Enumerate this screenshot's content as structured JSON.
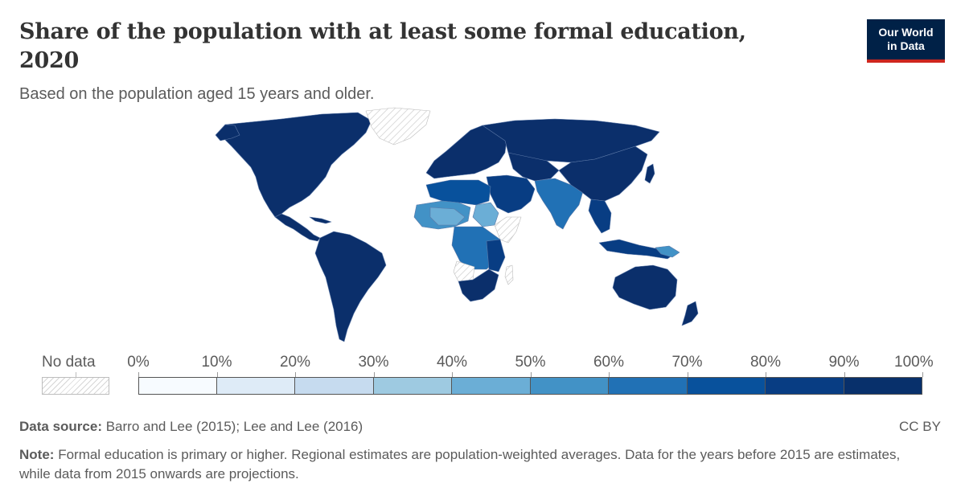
{
  "header": {
    "title": "Share of the population with at least some formal education, 2020",
    "subtitle": "Based on the population aged 15 years and older.",
    "logo_line1": "Our World",
    "logo_line2": "in Data"
  },
  "legend": {
    "no_data_label": "No data",
    "ticks": [
      "0%",
      "10%",
      "20%",
      "30%",
      "40%",
      "50%",
      "60%",
      "70%",
      "80%",
      "90%",
      "100%"
    ],
    "colors": [
      "#f7fbff",
      "#deebf7",
      "#c6dbef",
      "#9ecae1",
      "#6baed6",
      "#4292c6",
      "#2171b5",
      "#08519c",
      "#083d83",
      "#08306b"
    ],
    "no_data_color": "#d6d6d6"
  },
  "footer": {
    "source_label": "Data source:",
    "source_text": "Barro and Lee (2015); Lee and Lee (2016)",
    "license": "CC BY",
    "note_label": "Note:",
    "note_text": "Formal education is primary or higher. Regional estimates are population-weighted averages. Data for the years before 2015 are estimates, while data from 2015 onwards are projections."
  },
  "map_colors": {
    "high": "#0b2f6b",
    "high2": "#08306b",
    "mid_high": "#083d83",
    "mid": "#2171b5",
    "mid_low": "#4292c6",
    "low": "#6baed6",
    "lowest": "#9ecae1",
    "border": "#5e7aa8"
  }
}
